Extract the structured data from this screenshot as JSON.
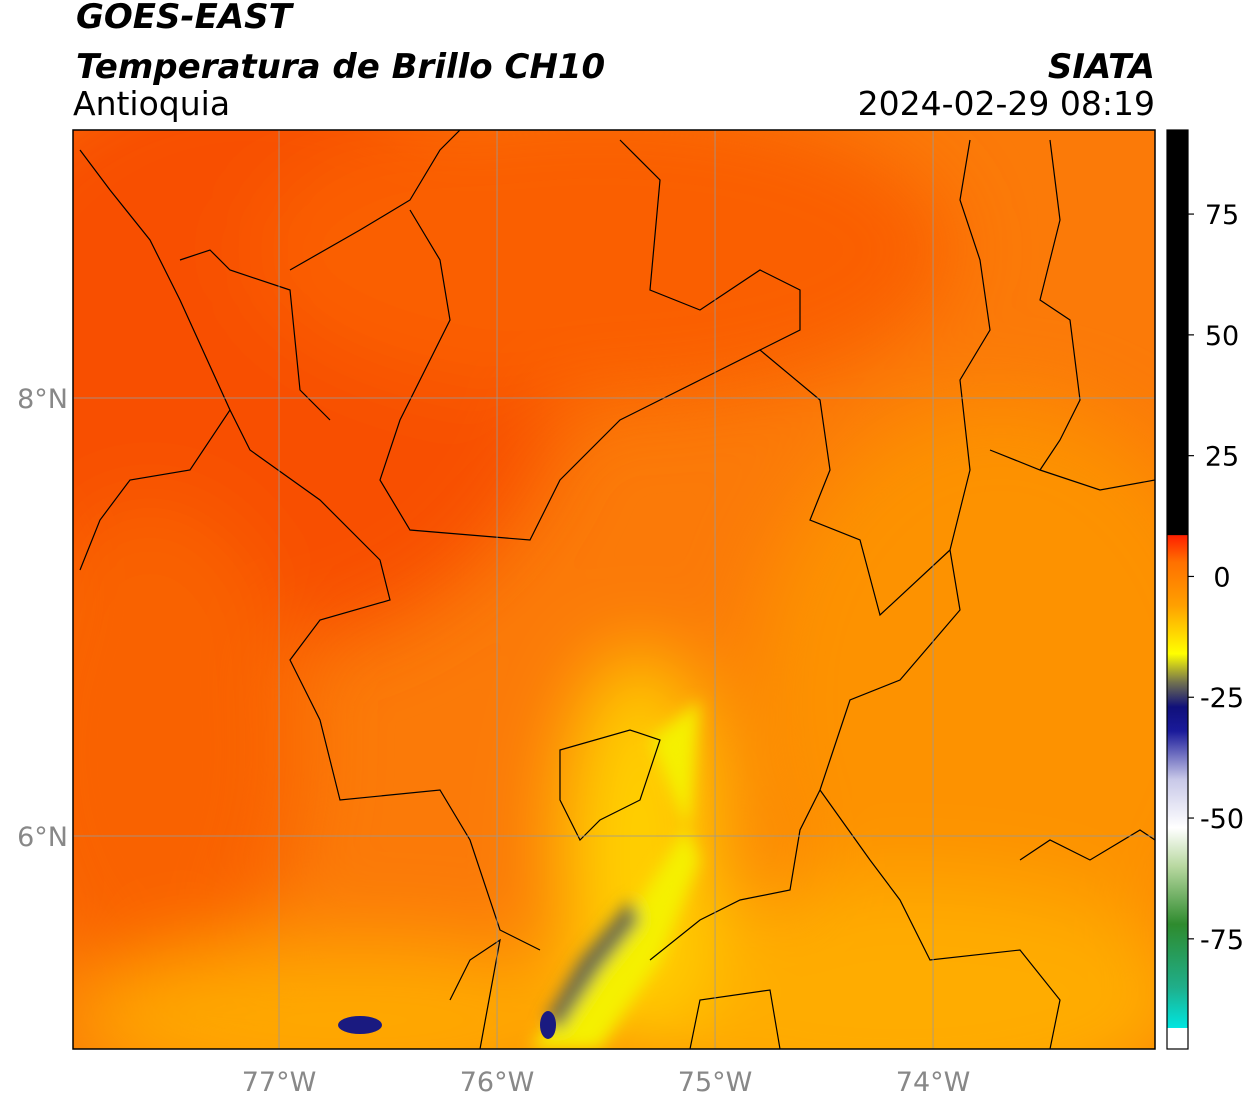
{
  "header": {
    "title": "GOES-EAST",
    "subtitle": "Temperatura de Brillo CH10",
    "region": "Antioquia",
    "source": "SIATA",
    "timestamp": "2024-02-29 08:19"
  },
  "map": {
    "lon_range": [
      -77.945,
      -72.982
    ],
    "lat_range": [
      5.027,
      9.224
    ],
    "lon_ticks": [
      {
        "value": -77,
        "label": "77°W"
      },
      {
        "value": -76,
        "label": "76°W"
      },
      {
        "value": -75,
        "label": "75°W"
      },
      {
        "value": -74,
        "label": "74°W"
      }
    ],
    "lat_ticks": [
      {
        "value": 8,
        "label": "8°N"
      },
      {
        "value": 6,
        "label": "6°N"
      }
    ],
    "grid_color": "#999999"
  },
  "colorbar": {
    "range": [
      -97.8,
      92.4
    ],
    "ticks": [
      75,
      50,
      25,
      0,
      -25,
      -50,
      -75
    ],
    "colormap": [
      {
        "value": -97.8,
        "color": "#ffffff"
      },
      {
        "value": -93.5,
        "color": "#ffffff"
      },
      {
        "value": -93.4,
        "color": "#00e5e0"
      },
      {
        "value": -85,
        "color": "#1fae8a"
      },
      {
        "value": -72,
        "color": "#2e8b2e"
      },
      {
        "value": -60,
        "color": "#b8d8a0"
      },
      {
        "value": -52,
        "color": "#ffffff"
      },
      {
        "value": -42,
        "color": "#c8c8e8"
      },
      {
        "value": -32,
        "color": "#1a1a9a"
      },
      {
        "value": -27,
        "color": "#10107a"
      },
      {
        "value": -22,
        "color": "#707050"
      },
      {
        "value": -16,
        "color": "#ffff00"
      },
      {
        "value": -6,
        "color": "#ffa000"
      },
      {
        "value": 3,
        "color": "#ff7000"
      },
      {
        "value": 8.5,
        "color": "#ff2000"
      },
      {
        "value": 8.6,
        "color": "#000000"
      },
      {
        "value": 92.4,
        "color": "#000000"
      }
    ]
  }
}
